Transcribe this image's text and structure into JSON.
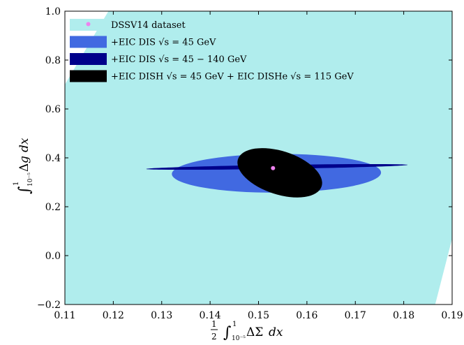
{
  "chart_data": {
    "type": "scatter",
    "xlim": [
      0.11,
      0.19
    ],
    "ylim": [
      -0.2,
      1.0
    ],
    "xticks": [
      "0.11",
      "0.12",
      "0.13",
      "0.14",
      "0.15",
      "0.16",
      "0.17",
      "0.18",
      "0.19"
    ],
    "yticks": [
      "−0.2",
      "0.0",
      "0.2",
      "0.4",
      "0.6",
      "0.8",
      "1.0"
    ],
    "xtick_values": [
      0.11,
      0.12,
      0.13,
      0.14,
      0.15,
      0.16,
      0.17,
      0.18,
      0.19
    ],
    "ytick_values": [
      -0.2,
      0.0,
      0.2,
      0.4,
      0.6,
      0.8,
      1.0
    ],
    "xlabel": "½ ∫¹₁₀⁻⁵ ΔΣ dx",
    "ylabel": "∫¹₁₀⁻⁵ Δg dx",
    "legend_position": "top-left",
    "series": [
      {
        "name": "DSSV14 dataset",
        "kind": "band",
        "color": "#b0eded",
        "polygon": [
          [
            0.11,
            0.7
          ],
          [
            0.119,
            1.0
          ],
          [
            0.19,
            1.0
          ],
          [
            0.19,
            0.07
          ],
          [
            0.1865,
            -0.2
          ],
          [
            0.11,
            -0.2
          ]
        ]
      },
      {
        "name": "+EIC DIS √s = 45 GeV",
        "kind": "ellipse",
        "color": "#4169e1",
        "center": [
          0.1537,
          0.337
        ],
        "x_halfwidth": 0.0216,
        "y_halfwidth": 0.079,
        "rotation_deg": 0.4
      },
      {
        "name": "+EIC DIS √s = 45 − 140 GeV",
        "kind": "ellipse",
        "color": "#00008b",
        "center": [
          0.1538,
          0.363
        ],
        "x_halfwidth": 0.027,
        "y_halfwidth": 0.022,
        "rotation_deg": 0.9
      },
      {
        "name": "+EIC DISH √s = 45 GeV + EIC DISHe √s = 115 GeV",
        "kind": "ellipse",
        "color": "#000000",
        "center": [
          0.1544,
          0.339
        ],
        "x_halfwidth": 0.0069,
        "y_halfwidth": 0.072,
        "rotation_deg": -18
      },
      {
        "name": "central value",
        "kind": "point",
        "color": "#ee82ee",
        "x": 0.153,
        "y": 0.358
      }
    ],
    "legend": [
      {
        "label": "DSSV14 dataset",
        "color": "#b0eded",
        "marker": "violet-dot"
      },
      {
        "label": "+EIC DIS √s = 45 GeV",
        "color": "#4169e1"
      },
      {
        "label": "+EIC DIS √s = 45 − 140 GeV",
        "color": "#00008b"
      },
      {
        "label": "+EIC DISH √s = 45 GeV + EIC DISHe √s = 115 GeV",
        "color": "#000000"
      }
    ]
  }
}
